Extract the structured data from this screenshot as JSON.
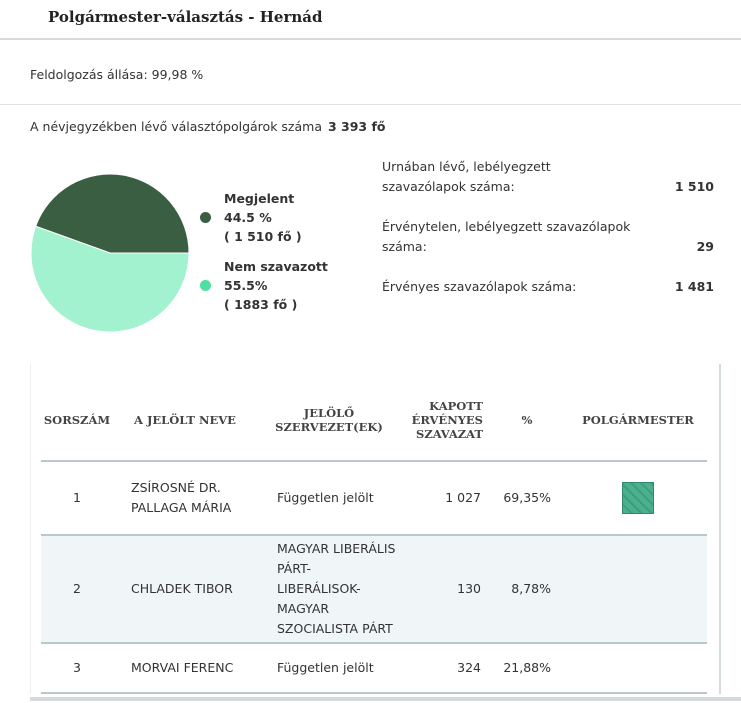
{
  "header": {
    "title": "Polgármester-választás - Hernád"
  },
  "status": {
    "label": "Feldolgozás állása: 99,98 %"
  },
  "voters": {
    "label": "A névjegyzékben lévő választópolgárok száma",
    "value": "3 393  fő"
  },
  "pie": {
    "colors": {
      "appeared": "#3a5e42",
      "not_voted": "#a2f2cf"
    },
    "appeared": {
      "label": "Megjelent",
      "percent": "44.5 %",
      "count": "( 1 510  fő )",
      "value": 44.5
    },
    "not_voted": {
      "label": "Nem szavazott",
      "percent": "55.5%",
      "count": "( 1883 fő )",
      "value": 55.5
    }
  },
  "stats": [
    {
      "label": "Urnában lévő, lebélyegzett szavazólapok száma:",
      "value": "1 510"
    },
    {
      "label": "Érvénytelen, lebélyegzett szavazólapok száma:",
      "value": "29"
    },
    {
      "label": "Érvényes szavazólapok száma:",
      "value": "1 481"
    }
  ],
  "table": {
    "headers": [
      "SORSZÁM",
      "A JELÖLT NEVE",
      "JELÖLŐ SZERVEZET(EK)",
      "KAPOTT ÉRVÉNYES SZAVAZAT",
      "%",
      "POLGÁRMESTER"
    ],
    "rows": [
      {
        "no": "1",
        "name": "ZSÍROSNÉ DR. PALLAGA MÁRIA",
        "org": "Független jelölt",
        "votes": "1 027",
        "pct": "69,35%",
        "winner": true
      },
      {
        "no": "2",
        "name": "CHLADEK TIBOR",
        "org": "MAGYAR LIBERÁLIS PÁRT- LIBERÁLISOK-MAGYAR SZOCIALISTA PÁRT",
        "votes": "130",
        "pct": "8,78%",
        "winner": false
      },
      {
        "no": "3",
        "name": "MORVAI FERENC",
        "org": "Független jelölt",
        "votes": "324",
        "pct": "21,88%",
        "winner": false
      }
    ]
  }
}
